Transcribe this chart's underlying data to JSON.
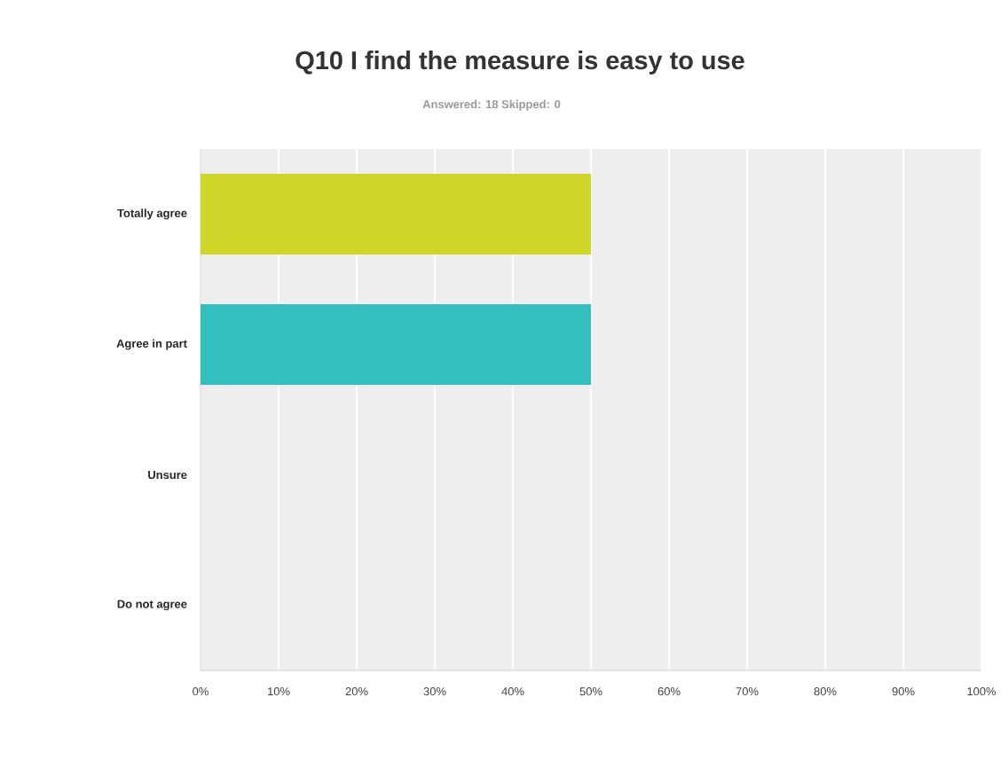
{
  "chart_data": {
    "type": "bar",
    "orientation": "horizontal",
    "title": "Q10 I find the measure is easy to use",
    "subtitle": "Answered: 18    Skipped: 0",
    "categories": [
      "Totally agree",
      "Agree in part",
      "Unsure",
      "Do not agree"
    ],
    "values": [
      50,
      50,
      0,
      0
    ],
    "colors": [
      "#d0d628",
      "#33bec0",
      null,
      null
    ],
    "xlim": [
      0,
      100
    ],
    "xticks": [
      {
        "value": 0,
        "label": "0%"
      },
      {
        "value": 10,
        "label": "10%"
      },
      {
        "value": 20,
        "label": "20%"
      },
      {
        "value": 30,
        "label": "30%"
      },
      {
        "value": 40,
        "label": "40%"
      },
      {
        "value": 50,
        "label": "50%"
      },
      {
        "value": 60,
        "label": "60%"
      },
      {
        "value": 70,
        "label": "70%"
      },
      {
        "value": 80,
        "label": "80%"
      },
      {
        "value": 90,
        "label": "90%"
      },
      {
        "value": 100,
        "label": "100%"
      }
    ],
    "grid": "x"
  }
}
